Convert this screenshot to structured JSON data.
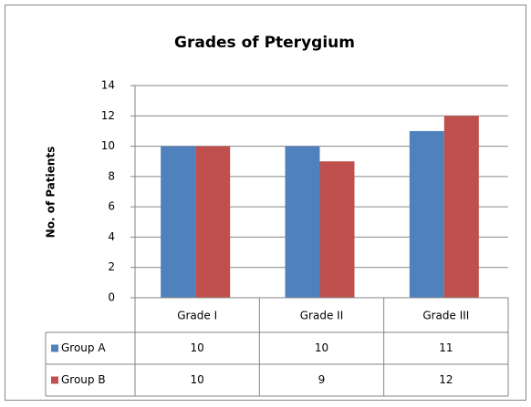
{
  "chart_data": {
    "type": "bar",
    "title": "Grades of Pterygium",
    "y_label": "No. of Patients",
    "categories": [
      "Grade I",
      "Grade II",
      "Grade III"
    ],
    "series": [
      {
        "name": "Group A",
        "color": "#4f81bd",
        "values": [
          10,
          10,
          11
        ]
      },
      {
        "name": "Group B",
        "color": "#c0504d",
        "values": [
          10,
          9,
          12
        ]
      }
    ],
    "ylim": [
      0,
      14
    ],
    "yticks": [
      0,
      2,
      4,
      6,
      8,
      10,
      12,
      14
    ],
    "grid": true,
    "legend": "data-table"
  }
}
